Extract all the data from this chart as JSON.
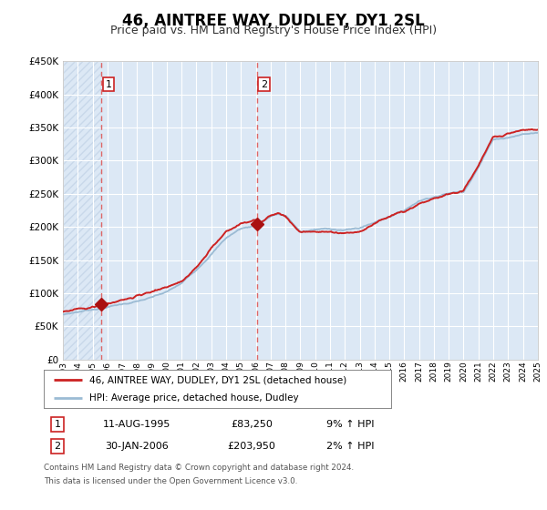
{
  "title": "46, AINTREE WAY, DUDLEY, DY1 2SL",
  "subtitle": "Price paid vs. HM Land Registry's House Price Index (HPI)",
  "ylim": [
    0,
    450000
  ],
  "yticks": [
    0,
    50000,
    100000,
    150000,
    200000,
    250000,
    300000,
    350000,
    400000,
    450000
  ],
  "ytick_labels": [
    "£0",
    "£50K",
    "£100K",
    "£150K",
    "£200K",
    "£250K",
    "£300K",
    "£350K",
    "£400K",
    "£450K"
  ],
  "background_color": "#ffffff",
  "plot_bg_color": "#dce8f5",
  "hatch_color": "#c8d8ea",
  "grid_color": "#ffffff",
  "sale1_date": 1995.61,
  "sale1_price": 83250,
  "sale1_label": "1",
  "sale2_date": 2006.08,
  "sale2_price": 203950,
  "sale2_label": "2",
  "legend_line1_label": "46, AINTREE WAY, DUDLEY, DY1 2SL (detached house)",
  "legend_line2_label": "HPI: Average price, detached house, Dudley",
  "table_row1_num": "1",
  "table_row1_date": "11-AUG-1995",
  "table_row1_price": "£83,250",
  "table_row1_hpi": "9% ↑ HPI",
  "table_row2_num": "2",
  "table_row2_date": "30-JAN-2006",
  "table_row2_price": "£203,950",
  "table_row2_hpi": "2% ↑ HPI",
  "footnote1": "Contains HM Land Registry data © Crown copyright and database right 2024.",
  "footnote2": "This data is licensed under the Open Government Licence v3.0.",
  "hpi_line_color": "#9bbbd4",
  "price_line_color": "#cc2222",
  "marker_color": "#aa1111",
  "dashed_line_color": "#dd6666",
  "title_fontsize": 12,
  "subtitle_fontsize": 9
}
